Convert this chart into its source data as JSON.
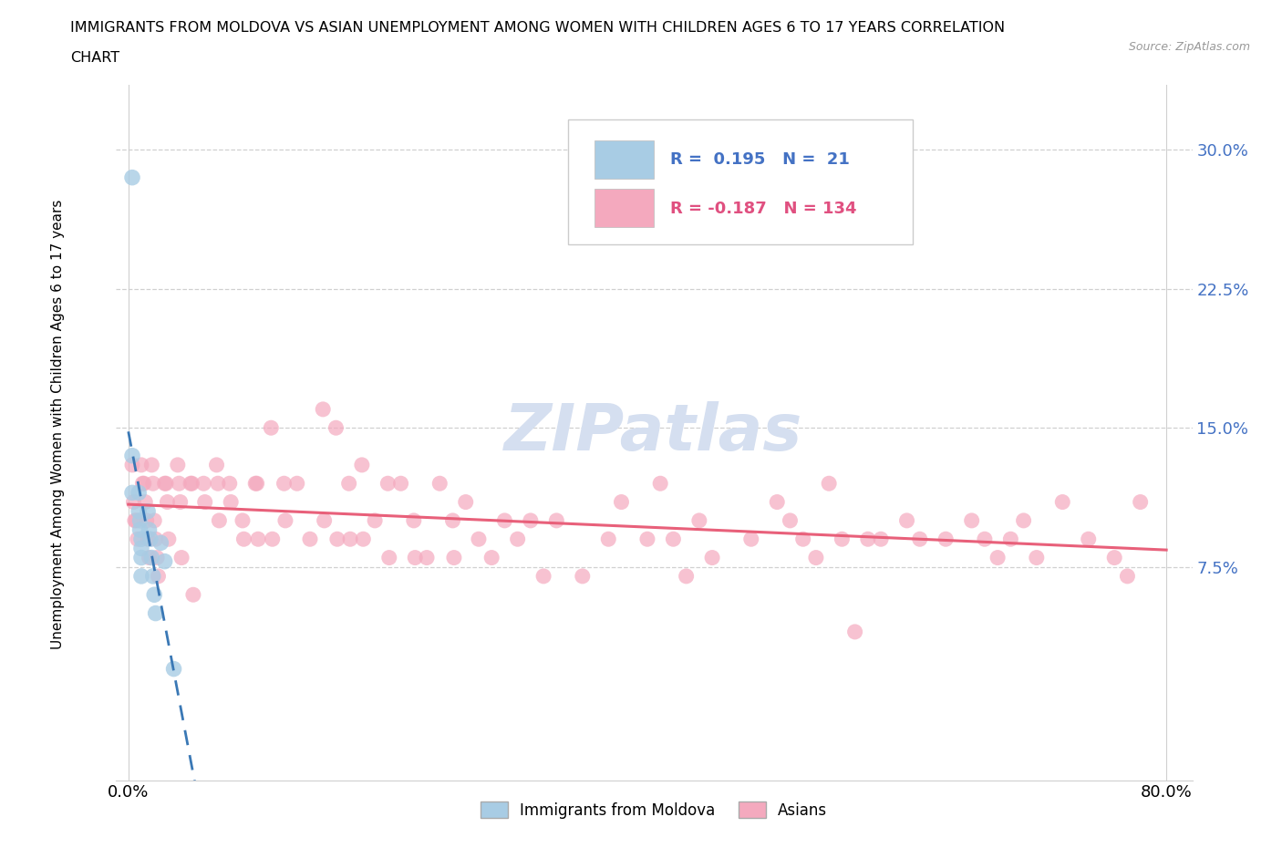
{
  "title_line1": "IMMIGRANTS FROM MOLDOVA VS ASIAN UNEMPLOYMENT AMONG WOMEN WITH CHILDREN AGES 6 TO 17 YEARS CORRELATION",
  "title_line2": "CHART",
  "source_text": "Source: ZipAtlas.com",
  "ylabel": "Unemployment Among Women with Children Ages 6 to 17 years",
  "xlim": [
    -0.01,
    0.82
  ],
  "ylim": [
    -0.04,
    0.335
  ],
  "yticks": [
    0.075,
    0.15,
    0.225,
    0.3
  ],
  "ytick_labels": [
    "7.5%",
    "15.0%",
    "22.5%",
    "30.0%"
  ],
  "xtick_positions": [
    0.0,
    0.8
  ],
  "xtick_labels": [
    "0.0%",
    "80.0%"
  ],
  "blue_color": "#a8cce4",
  "pink_color": "#f4a9be",
  "trendline_blue_color": "#3a78b5",
  "trendline_pink_color": "#e8607a",
  "watermark_color": "#d5dff0",
  "grid_color": "#d0d0d0",
  "ytick_color": "#4472c4",
  "blue_scatter_x": [
    0.003,
    0.003,
    0.003,
    0.008,
    0.008,
    0.009,
    0.009,
    0.01,
    0.01,
    0.01,
    0.01,
    0.015,
    0.016,
    0.017,
    0.018,
    0.019,
    0.02,
    0.021,
    0.025,
    0.028,
    0.035
  ],
  "blue_scatter_y": [
    0.285,
    0.135,
    0.115,
    0.115,
    0.105,
    0.1,
    0.095,
    0.09,
    0.085,
    0.08,
    0.07,
    0.105,
    0.095,
    0.09,
    0.08,
    0.07,
    0.06,
    0.05,
    0.088,
    0.078,
    0.02
  ],
  "pink_scatter_x": [
    0.003,
    0.004,
    0.005,
    0.006,
    0.007,
    0.01,
    0.011,
    0.012,
    0.013,
    0.014,
    0.015,
    0.016,
    0.018,
    0.019,
    0.02,
    0.021,
    0.022,
    0.023,
    0.028,
    0.029,
    0.03,
    0.031,
    0.038,
    0.039,
    0.04,
    0.041,
    0.048,
    0.049,
    0.05,
    0.058,
    0.059,
    0.068,
    0.069,
    0.07,
    0.078,
    0.079,
    0.088,
    0.089,
    0.098,
    0.099,
    0.1,
    0.11,
    0.111,
    0.12,
    0.121,
    0.13,
    0.14,
    0.15,
    0.151,
    0.16,
    0.161,
    0.17,
    0.171,
    0.18,
    0.181,
    0.19,
    0.2,
    0.201,
    0.21,
    0.22,
    0.221,
    0.23,
    0.24,
    0.25,
    0.251,
    0.26,
    0.27,
    0.28,
    0.29,
    0.3,
    0.31,
    0.32,
    0.33,
    0.35,
    0.37,
    0.38,
    0.4,
    0.41,
    0.42,
    0.43,
    0.44,
    0.45,
    0.48,
    0.5,
    0.51,
    0.52,
    0.53,
    0.54,
    0.55,
    0.56,
    0.57,
    0.58,
    0.6,
    0.61,
    0.63,
    0.65,
    0.66,
    0.67,
    0.68,
    0.69,
    0.7,
    0.72,
    0.74,
    0.76,
    0.77,
    0.78
  ],
  "pink_scatter_y": [
    0.13,
    0.11,
    0.1,
    0.1,
    0.09,
    0.13,
    0.12,
    0.12,
    0.11,
    0.1,
    0.09,
    0.08,
    0.13,
    0.12,
    0.1,
    0.09,
    0.08,
    0.07,
    0.12,
    0.12,
    0.11,
    0.09,
    0.13,
    0.12,
    0.11,
    0.08,
    0.12,
    0.12,
    0.06,
    0.12,
    0.11,
    0.13,
    0.12,
    0.1,
    0.12,
    0.11,
    0.1,
    0.09,
    0.12,
    0.12,
    0.09,
    0.15,
    0.09,
    0.12,
    0.1,
    0.12,
    0.09,
    0.16,
    0.1,
    0.15,
    0.09,
    0.12,
    0.09,
    0.13,
    0.09,
    0.1,
    0.12,
    0.08,
    0.12,
    0.1,
    0.08,
    0.08,
    0.12,
    0.1,
    0.08,
    0.11,
    0.09,
    0.08,
    0.1,
    0.09,
    0.1,
    0.07,
    0.1,
    0.07,
    0.09,
    0.11,
    0.09,
    0.12,
    0.09,
    0.07,
    0.1,
    0.08,
    0.09,
    0.11,
    0.1,
    0.09,
    0.08,
    0.12,
    0.09,
    0.04,
    0.09,
    0.09,
    0.1,
    0.09,
    0.09,
    0.1,
    0.09,
    0.08,
    0.09,
    0.1,
    0.08,
    0.11,
    0.09,
    0.08,
    0.07,
    0.11
  ]
}
